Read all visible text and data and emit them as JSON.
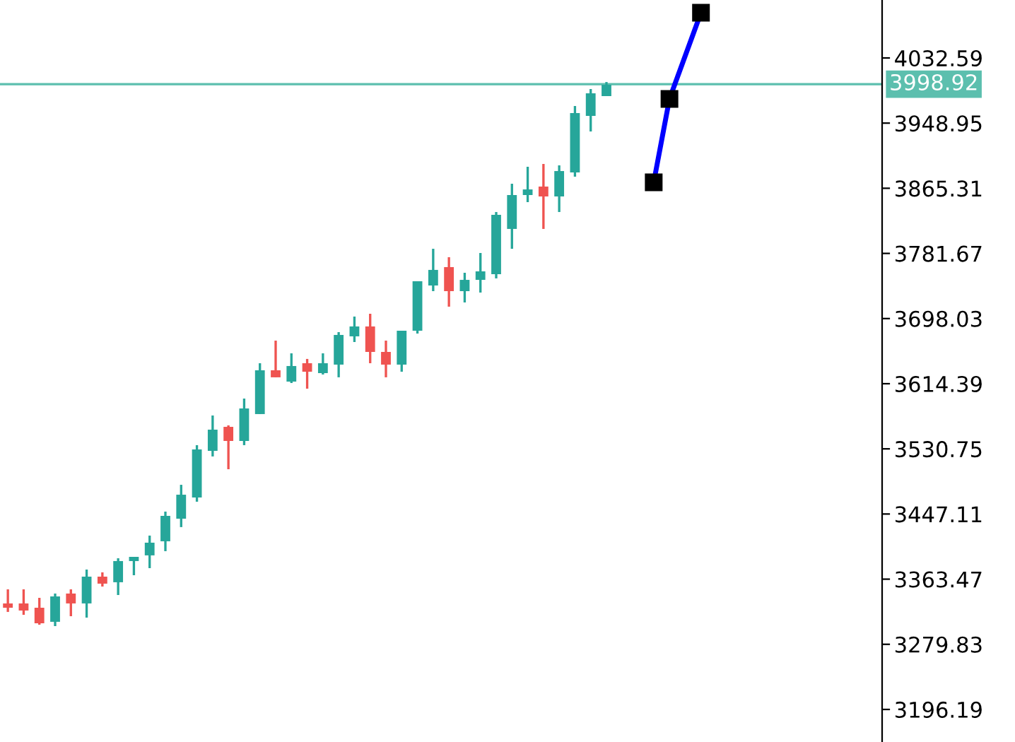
{
  "chart_data": {
    "type": "candlestick",
    "tick_labels": "y",
    "grid": false,
    "legend": false,
    "ylim": [
      3154.4,
      4107.0
    ],
    "yticks": [
      3196.19,
      3279.83,
      3363.47,
      3447.11,
      3530.75,
      3614.39,
      3698.03,
      3781.67,
      3865.31,
      3948.95,
      4032.59
    ],
    "categories": [
      null,
      null,
      null,
      null,
      null,
      null,
      null,
      null,
      null,
      null,
      null,
      null,
      null,
      null,
      null,
      null,
      null,
      null,
      null,
      null,
      null,
      null,
      null,
      null,
      null,
      null,
      null,
      null,
      null,
      null,
      null,
      null,
      null,
      null,
      null,
      null,
      null,
      null,
      null,
      null,
      null,
      null,
      null,
      null,
      null,
      null,
      null,
      null,
      null,
      null,
      null,
      null,
      null,
      null,
      null,
      null
    ],
    "series": [
      {
        "colors": [
          "#ef5350",
          "#ef5350",
          "#ef5350",
          "#26a69a",
          "#ef5350",
          "#26a69a",
          "#ef5350",
          "#26a69a",
          "#26a69a",
          "#26a69a",
          "#26a69a",
          "#26a69a",
          "#26a69a",
          "#26a69a",
          "#ef5350",
          "#26a69a",
          "#26a69a",
          "#ef5350",
          "#26a69a",
          "#ef5350",
          "#26a69a",
          "#26a69a",
          "#26a69a",
          "#ef5350",
          "#ef5350",
          "#26a69a",
          "#26a69a",
          "#26a69a",
          "#ef5350",
          "#26a69a",
          "#26a69a",
          "#26a69a",
          "#26a69a",
          "#26a69a",
          "#ef5350",
          "#26a69a",
          "#26a69a",
          "#26a69a",
          "#26a69a",
          null,
          null,
          null,
          null,
          null,
          null,
          null,
          null,
          null,
          null,
          null,
          null,
          null,
          null,
          null,
          null,
          null
        ],
        "ohlc": [
          [
            3332.3,
            3350.4,
            3321.4,
            3326.8
          ],
          [
            3332.3,
            3350.4,
            3317.7,
            3323.2
          ],
          [
            3326.8,
            3339.5,
            3305.0,
            3306.8
          ],
          [
            3308.7,
            3345.0,
            3303.2,
            3341.3
          ],
          [
            3345.0,
            3350.4,
            3315.9,
            3332.3
          ],
          [
            3332.3,
            3375.8,
            3314.1,
            3366.7
          ],
          [
            3366.7,
            3372.2,
            3354.0,
            3357.7
          ],
          [
            3359.5,
            3390.3,
            3343.1,
            3386.7
          ],
          [
            3386.7,
            3392.1,
            3368.5,
            3392.1
          ],
          [
            3394.0,
            3419.4,
            3377.6,
            3410.3
          ],
          [
            3412.1,
            3450.2,
            3399.4,
            3444.7
          ],
          [
            3441.1,
            3484.6,
            3430.3,
            3471.9
          ],
          [
            3468.3,
            3535.5,
            3462.9,
            3530.0
          ],
          [
            3528.2,
            3573.6,
            3521.0,
            3555.4
          ],
          [
            3559.0,
            3560.9,
            3504.6,
            3540.9
          ],
          [
            3540.9,
            3595.3,
            3535.5,
            3582.6
          ],
          [
            3575.4,
            3640.7,
            3575.4,
            3631.6
          ],
          [
            3631.6,
            3669.7,
            3622.6,
            3622.6
          ],
          [
            3617.1,
            3653.4,
            3615.3,
            3637.1
          ],
          [
            3640.7,
            3646.2,
            3608.0,
            3629.8
          ],
          [
            3628.0,
            3653.4,
            3626.2,
            3640.7
          ],
          [
            3638.9,
            3680.6,
            3622.6,
            3677.0
          ],
          [
            3675.2,
            3700.6,
            3667.9,
            3687.9
          ],
          [
            3687.9,
            3704.2,
            3640.7,
            3655.2
          ],
          [
            3655.2,
            3669.7,
            3622.6,
            3638.9
          ],
          [
            3638.9,
            3682.4,
            3629.8,
            3682.4
          ],
          [
            3682.4,
            3745.9,
            3678.8,
            3745.9
          ],
          [
            3740.5,
            3787.6,
            3733.2,
            3760.5
          ],
          [
            3764.1,
            3776.8,
            3713.3,
            3733.2
          ],
          [
            3733.2,
            3756.8,
            3718.7,
            3747.7
          ],
          [
            3747.7,
            3782.2,
            3731.4,
            3758.6
          ],
          [
            3755.0,
            3834.8,
            3749.6,
            3831.2
          ],
          [
            3813.1,
            3871.1,
            3787.6,
            3856.6
          ],
          [
            3856.6,
            3892.9,
            3847.5,
            3863.8
          ],
          [
            3867.5,
            3896.5,
            3813.1,
            3854.8
          ],
          [
            3854.8,
            3894.7,
            3834.8,
            3887.4
          ],
          [
            3885.6,
            3970.9,
            3880.2,
            3961.8
          ],
          [
            3958.2,
            3992.7,
            3938.2,
            3987.2
          ],
          [
            3983.6,
            4001.7,
            3983.6,
            3998.1
          ],
          null,
          null,
          null,
          null,
          null,
          null,
          null,
          null,
          null,
          null,
          null,
          null,
          null,
          null,
          null,
          null,
          null
        ]
      },
      {
        "type": "line",
        "values": [
          null,
          null,
          null,
          null,
          null,
          null,
          null,
          null,
          null,
          null,
          null,
          null,
          null,
          null,
          null,
          null,
          null,
          null,
          null,
          null,
          null,
          null,
          null,
          null,
          null,
          null,
          null,
          null,
          null,
          null,
          null,
          null,
          null,
          null,
          null,
          null,
          null,
          null,
          null,
          null,
          null,
          3872.9,
          3980.0,
          null,
          4090.6,
          null,
          null,
          null,
          null,
          null,
          null,
          null,
          null,
          null,
          null,
          null
        ],
        "color": "#0000ff",
        "marker": "square"
      }
    ],
    "ref_lines": [
      {
        "axis": "y",
        "value": 3998.92,
        "label": "3998.92",
        "color": "#5cbfae"
      }
    ]
  }
}
